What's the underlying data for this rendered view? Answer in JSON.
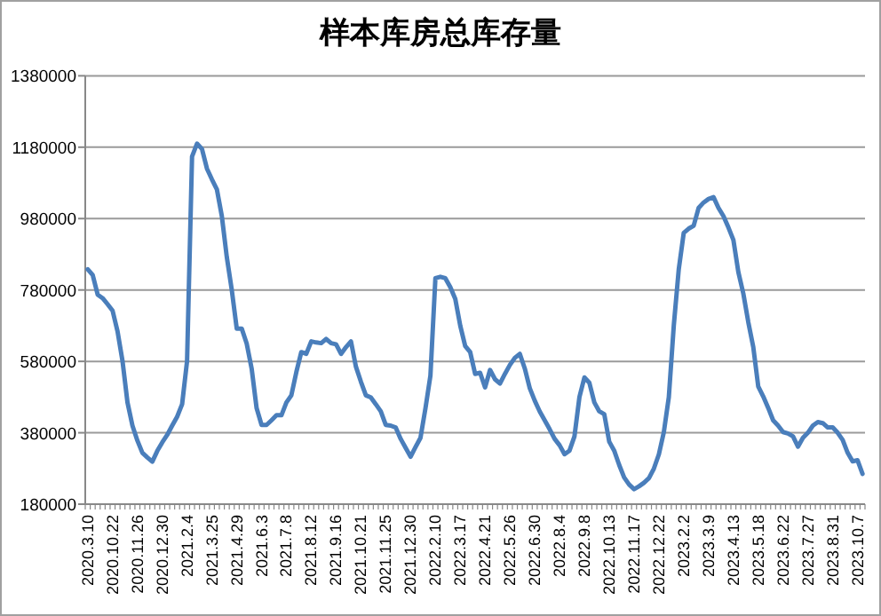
{
  "chart_data": {
    "type": "line",
    "title": "样本库房总库存量",
    "categories": [
      "2020.3.10",
      null,
      null,
      null,
      null,
      "2020.10.22",
      null,
      null,
      null,
      null,
      "2020.11.26",
      null,
      null,
      null,
      null,
      "2020.12.30",
      null,
      null,
      null,
      null,
      "2021.2.4",
      null,
      null,
      null,
      null,
      "2021.3.25",
      null,
      null,
      null,
      null,
      "2021.4.29",
      null,
      null,
      null,
      null,
      "2021.6.3",
      null,
      null,
      null,
      null,
      "2021.7.8",
      null,
      null,
      null,
      null,
      "2021.8.12",
      null,
      null,
      null,
      null,
      "2021.9.16",
      null,
      null,
      null,
      null,
      "2021.10.21",
      null,
      null,
      null,
      null,
      "2021.11.25",
      null,
      null,
      null,
      null,
      "2021.12.30",
      null,
      null,
      null,
      null,
      "2022.2.10",
      null,
      null,
      null,
      null,
      "2022.3.17",
      null,
      null,
      null,
      null,
      "2022.4.21",
      null,
      null,
      null,
      null,
      "2022.5.26",
      null,
      null,
      null,
      null,
      "2022.6.30",
      null,
      null,
      null,
      null,
      "2022.8.4",
      null,
      null,
      null,
      null,
      "2022.9.8",
      null,
      null,
      null,
      null,
      "2022.10.13",
      null,
      null,
      null,
      null,
      "2022.11.17",
      null,
      null,
      null,
      null,
      "2022.12.22",
      null,
      null,
      null,
      null,
      "2023.2.2",
      null,
      null,
      null,
      null,
      "2023.3.9",
      null,
      null,
      null,
      null,
      "2023.4.13",
      null,
      null,
      null,
      null,
      "2023.5.18",
      null,
      null,
      null,
      null,
      "2023.6.22",
      null,
      null,
      null,
      null,
      "2023.7.27",
      null,
      null,
      null,
      null,
      "2023.8.31",
      null,
      null,
      null,
      null,
      "2023.10.7",
      null
    ],
    "series": [
      {
        "color": "#4a7ebb",
        "values": [
          838000,
          822000,
          767000,
          757000,
          740000,
          722000,
          664000,
          581000,
          465000,
          400000,
          358000,
          324000,
          311000,
          299000,
          329000,
          353000,
          374000,
          400000,
          425000,
          460000,
          581000,
          1154000,
          1190000,
          1175000,
          1120000,
          1090000,
          1062000,
          987000,
          872000,
          780000,
          672000,
          672000,
          630000,
          560000,
          449000,
          402000,
          402000,
          415000,
          429000,
          429000,
          465000,
          485000,
          550000,
          606000,
          601000,
          636000,
          633000,
          631000,
          643000,
          631000,
          628000,
          601000,
          620000,
          636000,
          565000,
          523000,
          485000,
          479000,
          460000,
          440000,
          402000,
          400000,
          395000,
          363000,
          338000,
          313000,
          340000,
          366000,
          449000,
          540000,
          813000,
          817000,
          813000,
          788000,
          755000,
          680000,
          623000,
          606000,
          545000,
          548000,
          507000,
          556000,
          530000,
          518000,
          545000,
          570000,
          590000,
          601000,
          560000,
          505000,
          470000,
          440000,
          415000,
          390000,
          363000,
          345000,
          320000,
          330000,
          370000,
          480000,
          535000,
          520000,
          465000,
          440000,
          432000,
          355000,
          330000,
          290000,
          255000,
          235000,
          222000,
          230000,
          240000,
          253000,
          280000,
          320000,
          382000,
          480000,
          681000,
          838000,
          940000,
          952000,
          960000,
          1010000,
          1025000,
          1035000,
          1040000,
          1010000,
          987000,
          955000,
          920000,
          830000,
          770000,
          690000,
          620000,
          510000,
          482000,
          450000,
          415000,
          400000,
          382000,
          378000,
          370000,
          341000,
          366000,
          380000,
          400000,
          410000,
          407000,
          395000,
          395000,
          380000,
          360000,
          324000,
          300000,
          303000,
          265000
        ]
      }
    ],
    "ylim": [
      180000,
      1380000
    ],
    "yticks": [
      180000,
      380000,
      580000,
      780000,
      980000,
      1180000,
      1380000
    ],
    "grid": "y",
    "marker": "none",
    "line_style": "solid"
  }
}
